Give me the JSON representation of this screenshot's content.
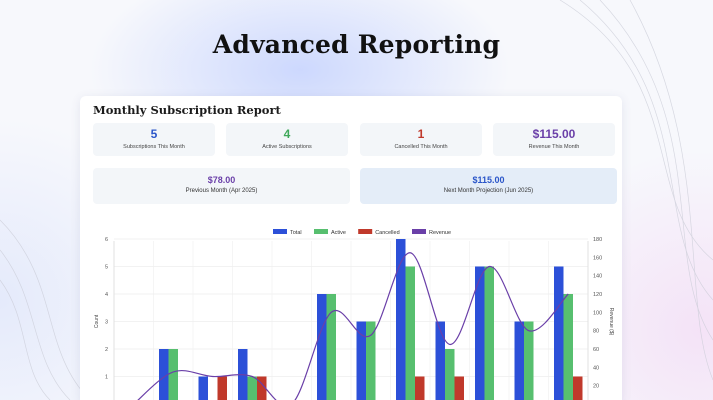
{
  "headline": "Advanced Reporting",
  "report": {
    "title": "Monthly Subscription Report",
    "stats": [
      {
        "value": "5",
        "label": "Subscriptions This Month",
        "color": "#2b56c9"
      },
      {
        "value": "4",
        "label": "Active Subscriptions",
        "color": "#3fa85a"
      },
      {
        "value": "1",
        "label": "Cancelled This Month",
        "color": "#c0392b"
      },
      {
        "value": "$115.00",
        "label": "Revenue This Month",
        "color": "#6a3fa8"
      }
    ],
    "previous": {
      "value": "$78.00",
      "label": "Previous Month (Apr 2025)",
      "color": "#6a3fa8"
    },
    "projection": {
      "value": "$115.00",
      "label": "Next Month Projection (Jun 2025)",
      "color": "#2b56c9"
    }
  },
  "colors": {
    "total": "#2c50d8",
    "active": "#57bf6f",
    "cancelled": "#c0392b",
    "revenue": "#6a3fa8"
  },
  "chart_data": {
    "type": "bar",
    "legend_position": "top",
    "ylabel": "Count",
    "y2label": "Revenue ($)",
    "ylim": [
      0,
      6
    ],
    "y2lim": [
      0,
      180
    ],
    "yticks": [
      "1",
      "2",
      "3",
      "4",
      "5",
      "6"
    ],
    "y2ticks": [
      "20",
      "40",
      "60",
      "80",
      "100",
      "120",
      "140",
      "160",
      "180"
    ],
    "series": [
      {
        "name": "Total",
        "kind": "bar",
        "values": [
          0,
          2,
          1,
          2,
          0,
          4,
          3,
          6,
          3,
          5,
          3,
          5
        ]
      },
      {
        "name": "Active",
        "kind": "bar",
        "values": [
          0,
          2,
          0,
          1,
          0,
          4,
          3,
          5,
          2,
          5,
          3,
          4
        ]
      },
      {
        "name": "Cancelled",
        "kind": "bar",
        "values": [
          0,
          0,
          1,
          1,
          0,
          0,
          0,
          1,
          1,
          0,
          0,
          1
        ]
      },
      {
        "name": "Revenue",
        "kind": "line",
        "values": [
          0,
          35,
          30,
          30,
          0,
          100,
          75,
          165,
          65,
          150,
          80,
          120
        ]
      }
    ]
  }
}
